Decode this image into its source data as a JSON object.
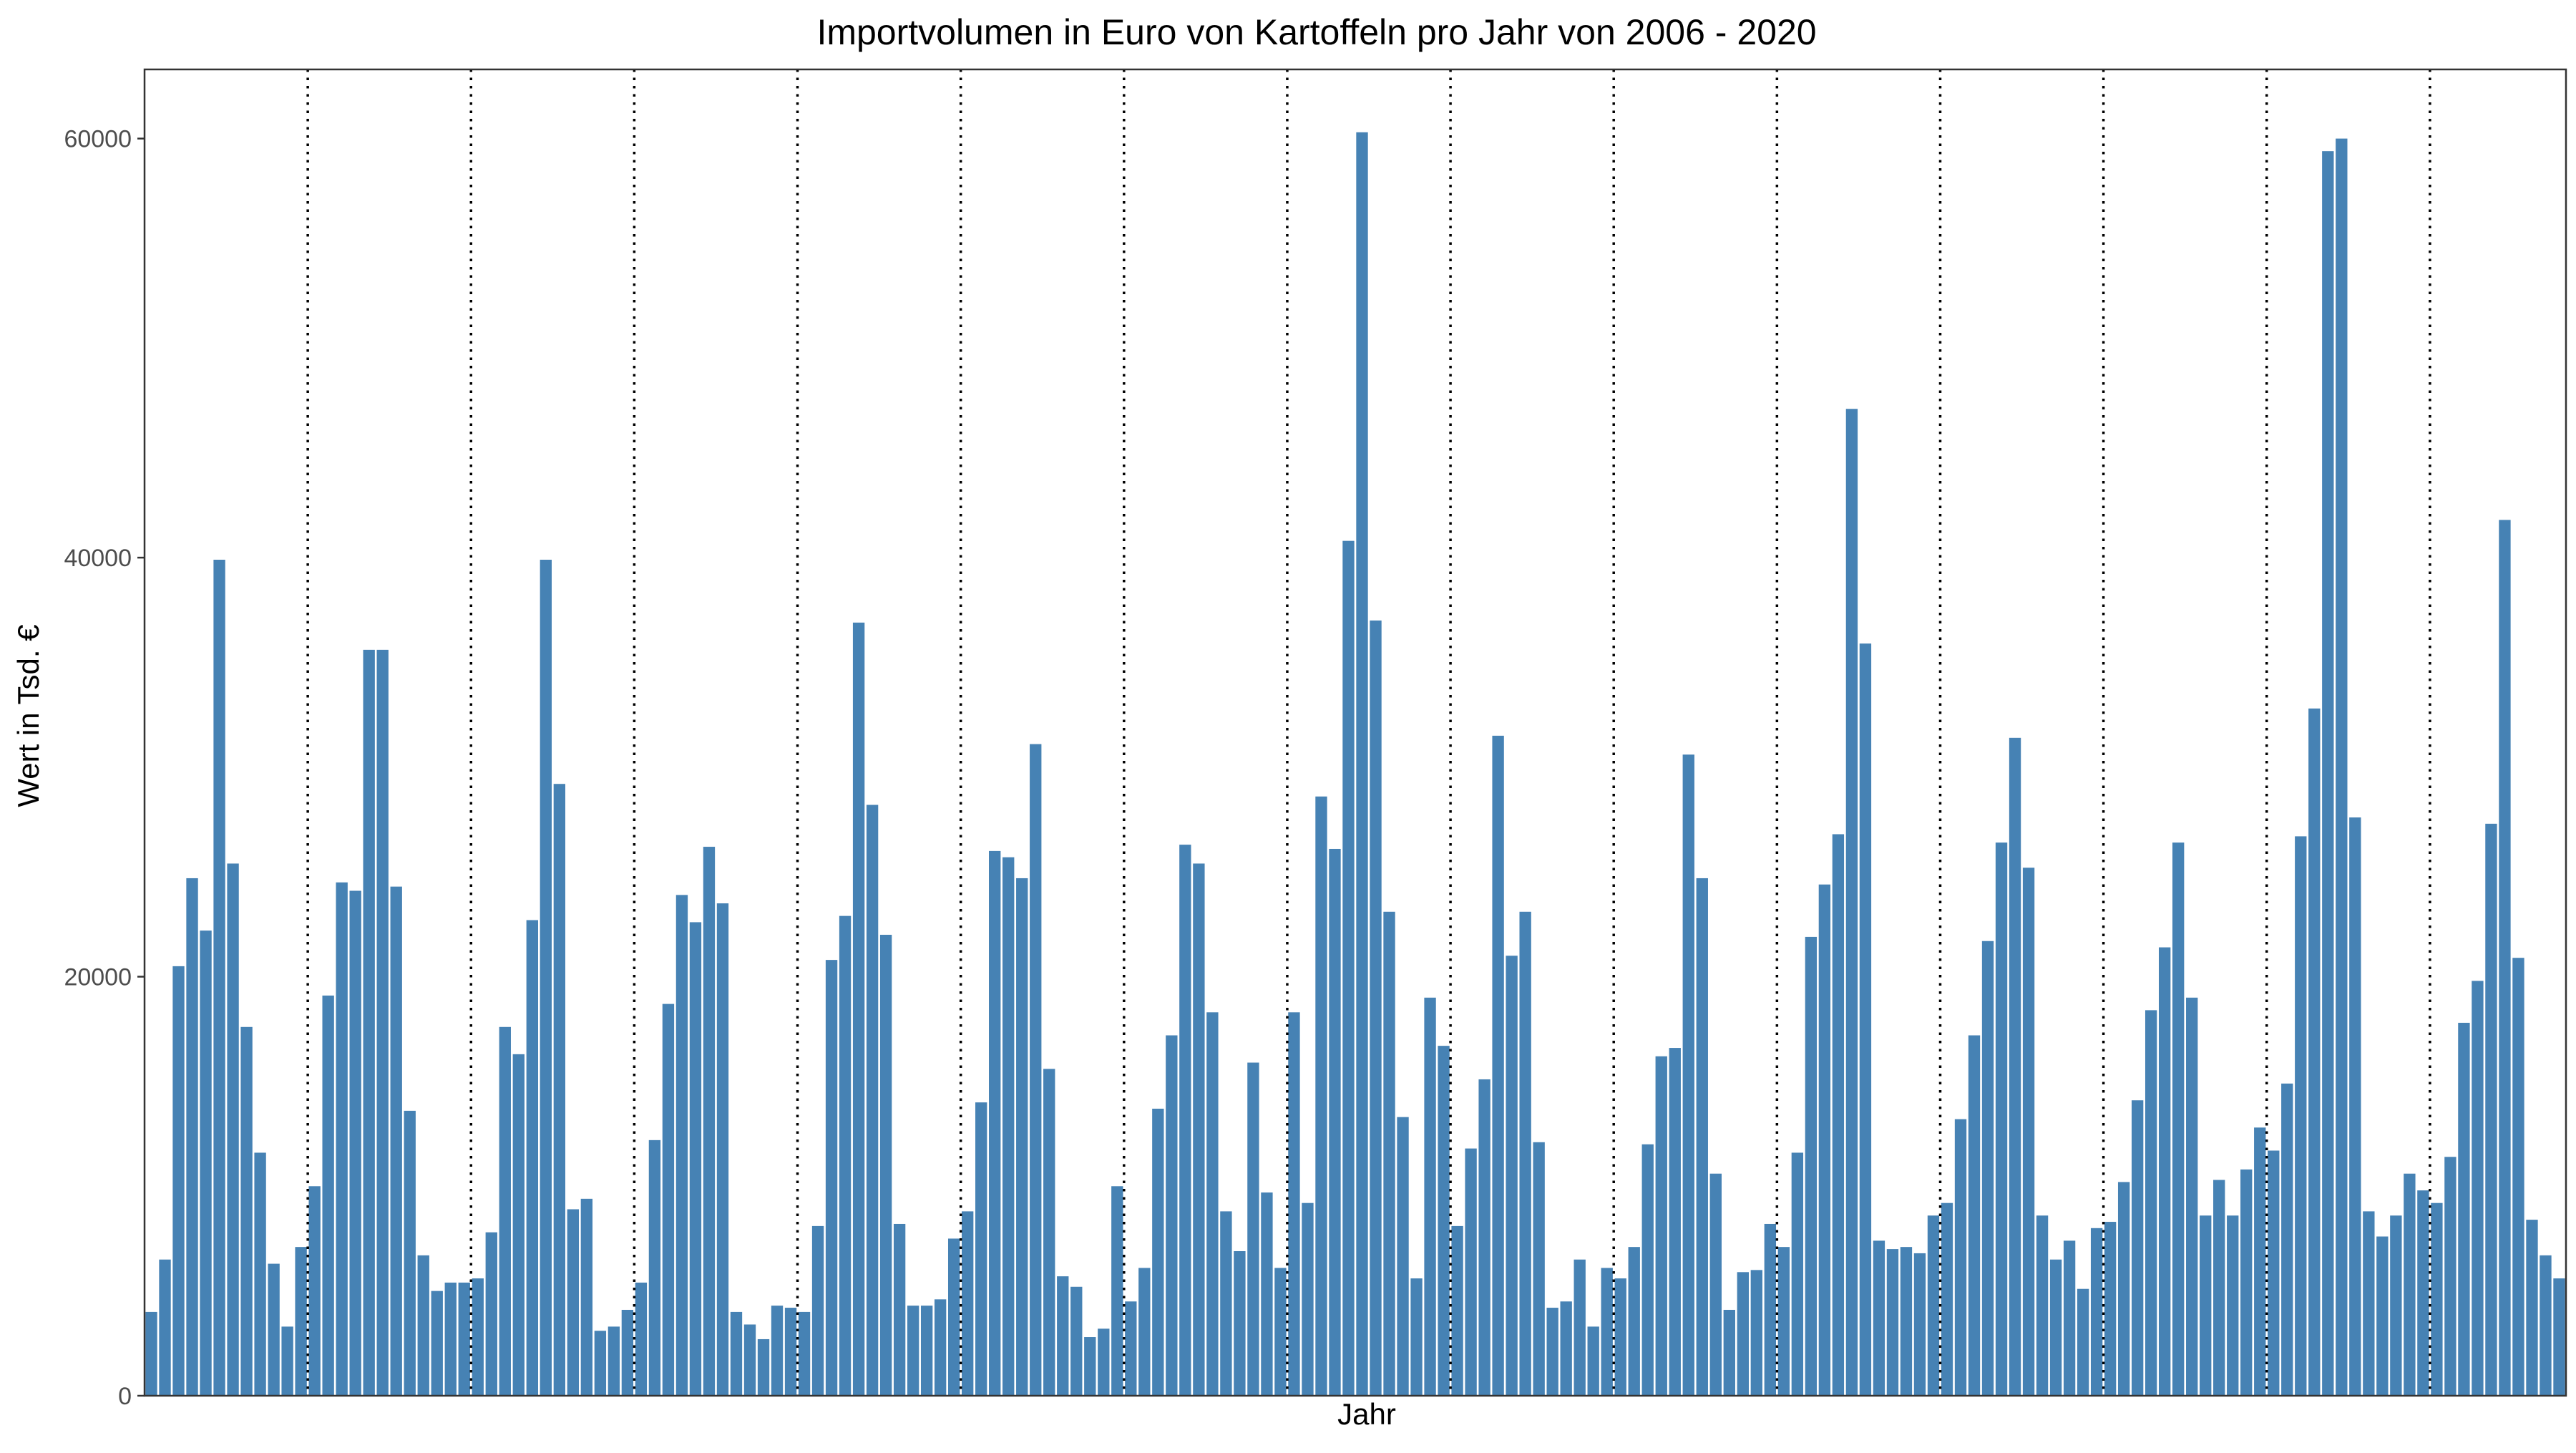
{
  "chart_data": {
    "type": "bar",
    "title": "Importvolumen in Euro von Kartoffeln pro Jahr von 2006 - 2020",
    "xlabel": "Jahr",
    "ylabel": "Wert in Tsd. €",
    "ylim": [
      0,
      63300
    ],
    "y_ticks": [
      0,
      20000,
      40000,
      60000
    ],
    "y_tick_labels": [
      "0",
      "20000",
      "40000",
      "60000"
    ],
    "bar_color": "#4682B4",
    "year_separator_style": "dotted",
    "year_separators_after_bar": [
      12,
      24,
      36,
      48,
      60,
      72,
      84,
      96,
      108,
      120,
      132,
      144,
      156,
      168
    ],
    "grid": false,
    "values": [
      4000,
      6500,
      20500,
      24700,
      22200,
      39900,
      25400,
      17600,
      11600,
      6300,
      3300,
      7100,
      10000,
      19100,
      24500,
      24100,
      35600,
      35600,
      24300,
      13600,
      6700,
      5000,
      5400,
      5400,
      5600,
      7800,
      17600,
      16300,
      22700,
      39900,
      29200,
      8900,
      9400,
      3100,
      3300,
      4100,
      5400,
      12200,
      18700,
      23900,
      22600,
      26200,
      23500,
      4000,
      3400,
      2700,
      4300,
      4200,
      4000,
      8100,
      20800,
      22900,
      36900,
      28200,
      22000,
      8200,
      4300,
      4300,
      4600,
      7500,
      8800,
      14000,
      26000,
      25700,
      24700,
      31100,
      15600,
      5700,
      5200,
      2800,
      3200,
      10000,
      4500,
      6100,
      13700,
      17200,
      26300,
      25400,
      18300,
      8800,
      6900,
      15900,
      9700,
      6100,
      18300,
      9200,
      28600,
      26100,
      40800,
      60300,
      37000,
      23100,
      13300,
      5600,
      19000,
      16700,
      8100,
      11800,
      15100,
      31500,
      21000,
      23100,
      12100,
      4200,
      4500,
      6500,
      3300,
      6100,
      5600,
      7100,
      12000,
      16200,
      16600,
      30600,
      24700,
      10600,
      4100,
      5900,
      6000,
      8200,
      7100,
      11600,
      21900,
      24400,
      26800,
      47100,
      35900,
      7400,
      7000,
      7100,
      6800,
      8600,
      9200,
      13200,
      17200,
      21700,
      26400,
      31400,
      25200,
      8600,
      6500,
      7400,
      5100,
      8000,
      8300,
      10200,
      14100,
      18400,
      21400,
      26400,
      19000,
      8600,
      10300,
      8600,
      10800,
      12800,
      11700,
      14900,
      26700,
      32800,
      59400,
      60000,
      27600,
      8800,
      7600,
      8600,
      10600,
      9800,
      9200,
      11400,
      17800,
      19800,
      27300,
      41800,
      20900,
      8400,
      6700,
      5600
    ]
  }
}
